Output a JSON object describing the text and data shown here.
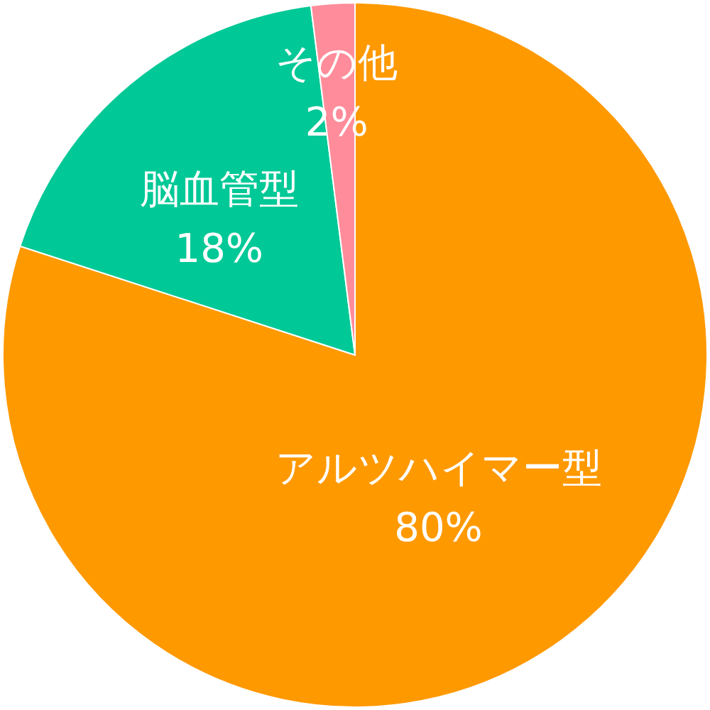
{
  "chart_data": {
    "type": "pie",
    "categories": [
      "アルツハイマー型",
      "脳血管型",
      "その他"
    ],
    "values": [
      80,
      18,
      2
    ],
    "value_labels": [
      "80%",
      "18%",
      "2%"
    ],
    "colors": [
      "#ff9900",
      "#00c896",
      "#ff8c9a"
    ]
  }
}
